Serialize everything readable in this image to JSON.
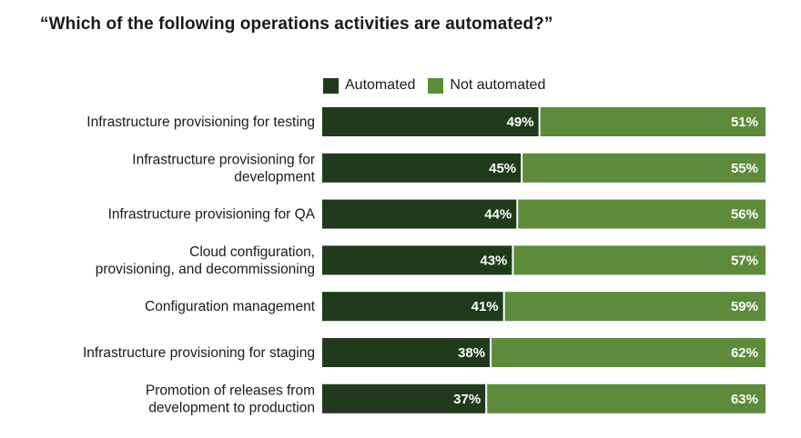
{
  "colors": {
    "automated": "#1f3b1c",
    "not_automated": "#5c8b3a"
  },
  "chart_data": {
    "type": "bar",
    "orientation": "horizontal",
    "stacked": true,
    "title": "“Which of the following operations activities are automated?”",
    "categories": [
      [
        "Infrastructure provisioning for testing"
      ],
      [
        "Infrastructure provisioning for",
        "development"
      ],
      [
        "Infrastructure provisioning for QA"
      ],
      [
        "Cloud configuration,",
        "provisioning, and decommissioning"
      ],
      [
        "Configuration management"
      ],
      [
        "Infrastructure provisioning for staging"
      ],
      [
        "Promotion of releases from",
        "development to production"
      ]
    ],
    "series": [
      {
        "name": "Automated",
        "values": [
          49,
          45,
          44,
          43,
          41,
          38,
          37
        ],
        "labels": [
          "49%",
          "45%",
          "44%",
          "43%",
          "41%",
          "38%",
          "37%"
        ]
      },
      {
        "name": "Not automated",
        "values": [
          51,
          55,
          56,
          57,
          59,
          62,
          63
        ],
        "labels": [
          "51%",
          "55%",
          "56%",
          "57%",
          "59%",
          "62%",
          "63%"
        ]
      }
    ],
    "xlim": [
      0,
      100
    ],
    "grid": false,
    "legend": "top"
  }
}
